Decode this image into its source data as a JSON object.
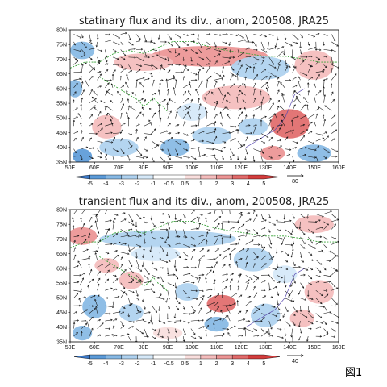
{
  "figure_label": "図1",
  "colors": {
    "neg5": "#3a78c8",
    "neg4": "#5b9ad8",
    "neg3": "#86b8e4",
    "neg2": "#aed1ef",
    "neg1": "#d5e8f8",
    "neutral": "#ffffff",
    "pos1": "#f9dedd",
    "pos2": "#f4bcbc",
    "pos3": "#ec9494",
    "pos4": "#e16a6a",
    "pos5": "#d33c3c",
    "coast": "#36a336",
    "arrow": "#111111"
  },
  "chart_data": [
    {
      "type": "heatmap",
      "title": "statinary flux and its div., anom, 200508, JRA25",
      "x_ticks": [
        "50E",
        "60E",
        "70E",
        "80E",
        "90E",
        "100E",
        "110E",
        "120E",
        "130E",
        "140E",
        "150E",
        "160E"
      ],
      "y_ticks": [
        "80N",
        "75N",
        "70N",
        "65N",
        "60N",
        "55N",
        "50N",
        "45N",
        "40N",
        "35N"
      ],
      "xlim": [
        50,
        160
      ],
      "ylim": [
        35,
        80
      ],
      "colorbar_labels": [
        "-5",
        "-4",
        "-3",
        "-2",
        "-1",
        "-0.5",
        "0.5",
        "1",
        "2",
        "3",
        "4",
        "5"
      ],
      "reference_vector": "80",
      "regions": [
        {
          "lon": 107,
          "lat": 71,
          "rx": 24,
          "ry": 3.5,
          "level": 3
        },
        {
          "lon": 80,
          "lat": 69,
          "rx": 12,
          "ry": 3,
          "level": 2
        },
        {
          "lon": 55,
          "lat": 73,
          "rx": 5,
          "ry": 3,
          "level": -3
        },
        {
          "lon": 52,
          "lat": 60,
          "rx": 3,
          "ry": 3,
          "level": -3
        },
        {
          "lon": 128,
          "lat": 67,
          "rx": 12,
          "ry": 4,
          "level": -2
        },
        {
          "lon": 150,
          "lat": 68,
          "rx": 8,
          "ry": 5,
          "level": 2
        },
        {
          "lon": 118,
          "lat": 57,
          "rx": 14,
          "ry": 4,
          "level": 2
        },
        {
          "lon": 140,
          "lat": 48,
          "rx": 8,
          "ry": 5,
          "level": 4
        },
        {
          "lon": 125,
          "lat": 47,
          "rx": 6,
          "ry": 3,
          "level": -2
        },
        {
          "lon": 108,
          "lat": 44,
          "rx": 8,
          "ry": 3,
          "level": -2
        },
        {
          "lon": 93,
          "lat": 40,
          "rx": 6,
          "ry": 3,
          "level": -3
        },
        {
          "lon": 65,
          "lat": 47,
          "rx": 6,
          "ry": 4,
          "level": 2
        },
        {
          "lon": 70,
          "lat": 40,
          "rx": 8,
          "ry": 3,
          "level": -2
        },
        {
          "lon": 55,
          "lat": 37,
          "rx": 4,
          "ry": 2.5,
          "level": -4
        },
        {
          "lon": 150,
          "lat": 38,
          "rx": 7,
          "ry": 3,
          "level": -3
        },
        {
          "lon": 133,
          "lat": 38,
          "rx": 5,
          "ry": 2.5,
          "level": 3
        },
        {
          "lon": 100,
          "lat": 52,
          "rx": 6,
          "ry": 3,
          "level": -1
        }
      ]
    },
    {
      "type": "heatmap",
      "title": "transient flux and its div., anom, 200508, JRA25",
      "x_ticks": [
        "50E",
        "60E",
        "70E",
        "80E",
        "90E",
        "100E",
        "110E",
        "120E",
        "130E",
        "140E",
        "150E",
        "160E"
      ],
      "y_ticks": [
        "80N",
        "75N",
        "70N",
        "65N",
        "60N",
        "55N",
        "50N",
        "45N",
        "40N",
        "35N"
      ],
      "xlim": [
        50,
        160
      ],
      "ylim": [
        35,
        80
      ],
      "colorbar_labels": [
        "-5",
        "-4",
        "-3",
        "-2",
        "-1",
        "-0.5",
        "0.5",
        "1",
        "2",
        "3",
        "4",
        "5"
      ],
      "reference_vector": "40",
      "regions": [
        {
          "lon": 90,
          "lat": 70,
          "rx": 28,
          "ry": 3,
          "level": -2
        },
        {
          "lon": 55,
          "lat": 71,
          "rx": 6,
          "ry": 3,
          "level": 3
        },
        {
          "lon": 65,
          "lat": 61,
          "rx": 5,
          "ry": 2.5,
          "level": 2
        },
        {
          "lon": 85,
          "lat": 65,
          "rx": 10,
          "ry": 2.5,
          "level": -1
        },
        {
          "lon": 125,
          "lat": 63,
          "rx": 8,
          "ry": 4,
          "level": -2
        },
        {
          "lon": 150,
          "lat": 75,
          "rx": 8,
          "ry": 3,
          "level": 2
        },
        {
          "lon": 112,
          "lat": 48,
          "rx": 6,
          "ry": 3,
          "level": 4
        },
        {
          "lon": 98,
          "lat": 52,
          "rx": 5,
          "ry": 3,
          "level": -2
        },
        {
          "lon": 75,
          "lat": 56,
          "rx": 5,
          "ry": 3,
          "level": 2
        },
        {
          "lon": 60,
          "lat": 47,
          "rx": 5,
          "ry": 4,
          "level": -3
        },
        {
          "lon": 75,
          "lat": 45,
          "rx": 5,
          "ry": 3,
          "level": -2
        },
        {
          "lon": 110,
          "lat": 41,
          "rx": 5,
          "ry": 2.5,
          "level": -3
        },
        {
          "lon": 130,
          "lat": 44,
          "rx": 6,
          "ry": 4,
          "level": -2
        },
        {
          "lon": 145,
          "lat": 43,
          "rx": 5,
          "ry": 3,
          "level": 2
        },
        {
          "lon": 152,
          "lat": 52,
          "rx": 6,
          "ry": 4,
          "level": 2
        },
        {
          "lon": 55,
          "lat": 38,
          "rx": 4,
          "ry": 2.5,
          "level": -3
        },
        {
          "lon": 90,
          "lat": 38,
          "rx": 6,
          "ry": 2,
          "level": 1
        },
        {
          "lon": 138,
          "lat": 58,
          "rx": 5,
          "ry": 3,
          "level": -1
        }
      ]
    }
  ]
}
